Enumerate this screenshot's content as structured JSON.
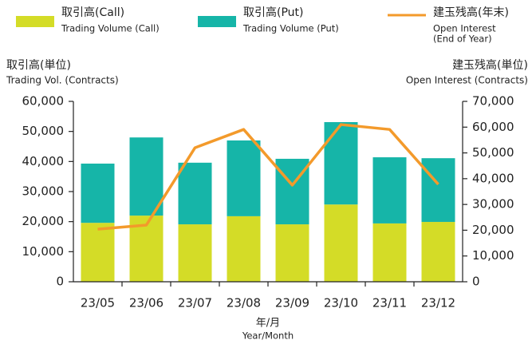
{
  "chart_data": {
    "type": "stacked_bar_line",
    "categories": [
      "23/05",
      "23/06",
      "23/07",
      "23/08",
      "23/09",
      "23/10",
      "23/11",
      "23/12"
    ],
    "series": [
      {
        "name": "取引高(Call)",
        "name_en": [
          "Trading Volume (Call)"
        ],
        "color": "#d4dc27",
        "type": "bar",
        "values": [
          19600,
          22000,
          19100,
          21800,
          19100,
          25700,
          19400,
          19900
        ]
      },
      {
        "name": "取引高(Put)",
        "name_en": [
          "Trading Volume (Put)"
        ],
        "color": "#16b5a8",
        "type": "bar",
        "values": [
          19700,
          26000,
          20500,
          25200,
          21800,
          27400,
          22000,
          21200
        ]
      },
      {
        "name": "建玉残高(年末)",
        "name_en": [
          "Open Interest",
          "(End of Year)"
        ],
        "color": "#f39a2b",
        "type": "line",
        "axis": "y2",
        "values": [
          20400,
          22000,
          52000,
          59100,
          37500,
          61000,
          59100,
          37800
        ]
      }
    ],
    "ylabel": [
      "取引高(単位)",
      "Trading Vol. (Contracts)"
    ],
    "y2label": [
      "建玉残高(単位)",
      "Open Interest (Contracts)"
    ],
    "xlabel": [
      "年/月",
      "Year/Month"
    ],
    "ylim": [
      0,
      60000
    ],
    "yticks": [
      0,
      {
        "value": 10000,
        "label": "10,000"
      },
      {
        "value": 20000,
        "label": "20,000"
      },
      {
        "value": 30000,
        "label": "30,000"
      },
      {
        "value": 40000,
        "label": "40,000"
      },
      {
        "value": 50000,
        "label": "50,000"
      },
      {
        "value": 60000,
        "label": "60,000"
      }
    ],
    "y2lim": [
      0,
      70000
    ],
    "y2ticks": [
      0,
      {
        "value": 10000,
        "label": "10,000"
      },
      {
        "value": 20000,
        "label": "20,000"
      },
      {
        "value": 30000,
        "label": "30,000"
      },
      {
        "value": 40000,
        "label": "40,000"
      },
      {
        "value": 50000,
        "label": "50,000"
      },
      {
        "value": 60000,
        "label": "60,000"
      },
      {
        "value": 70000,
        "label": "70,000"
      }
    ],
    "grid": false
  }
}
